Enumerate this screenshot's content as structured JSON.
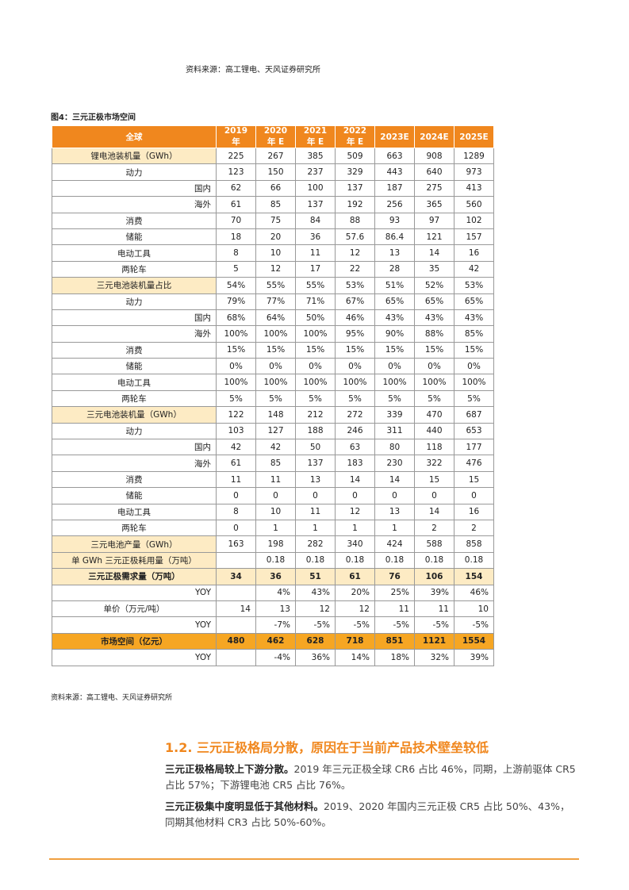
{
  "header": {
    "source": "资料来源：高工锂电、天风证券研究所"
  },
  "figure": {
    "caption": "图4：三元正极市场空间",
    "source": "资料来源：高工锂电、天风证券研究所"
  },
  "table": {
    "columns": [
      "全球",
      "2019 年",
      "2020 年 E",
      "2021 年 E",
      "2022 年 E",
      "2023E",
      "2024E",
      "2025E"
    ],
    "rows": [
      [
        "锂电池装机量（GWh）",
        "225",
        "267",
        "385",
        "509",
        "663",
        "908",
        "1289"
      ],
      [
        "动力",
        "123",
        "150",
        "237",
        "329",
        "443",
        "640",
        "973"
      ],
      [
        "国内",
        "62",
        "66",
        "100",
        "137",
        "187",
        "275",
        "413"
      ],
      [
        "海外",
        "61",
        "85",
        "137",
        "192",
        "256",
        "365",
        "560"
      ],
      [
        "消费",
        "70",
        "75",
        "84",
        "88",
        "93",
        "97",
        "102"
      ],
      [
        "储能",
        "18",
        "20",
        "36",
        "57.6",
        "86.4",
        "121",
        "157"
      ],
      [
        "电动工具",
        "8",
        "10",
        "11",
        "12",
        "13",
        "14",
        "16"
      ],
      [
        "两轮车",
        "5",
        "12",
        "17",
        "22",
        "28",
        "35",
        "42"
      ],
      [
        "三元电池装机量占比",
        "54%",
        "55%",
        "55%",
        "53%",
        "51%",
        "52%",
        "53%"
      ],
      [
        "动力",
        "79%",
        "77%",
        "71%",
        "67%",
        "65%",
        "65%",
        "65%"
      ],
      [
        "国内",
        "68%",
        "64%",
        "50%",
        "46%",
        "43%",
        "43%",
        "43%"
      ],
      [
        "海外",
        "100%",
        "100%",
        "100%",
        "95%",
        "90%",
        "88%",
        "85%"
      ],
      [
        "消费",
        "15%",
        "15%",
        "15%",
        "15%",
        "15%",
        "15%",
        "15%"
      ],
      [
        "储能",
        "0%",
        "0%",
        "0%",
        "0%",
        "0%",
        "0%",
        "0%"
      ],
      [
        "电动工具",
        "100%",
        "100%",
        "100%",
        "100%",
        "100%",
        "100%",
        "100%"
      ],
      [
        "两轮车",
        "5%",
        "5%",
        "5%",
        "5%",
        "5%",
        "5%",
        "5%"
      ],
      [
        "三元电池装机量（GWh）",
        "122",
        "148",
        "212",
        "272",
        "339",
        "470",
        "687"
      ],
      [
        "动力",
        "103",
        "127",
        "188",
        "246",
        "311",
        "440",
        "653"
      ],
      [
        "国内",
        "42",
        "42",
        "50",
        "63",
        "80",
        "118",
        "177"
      ],
      [
        "海外",
        "61",
        "85",
        "137",
        "183",
        "230",
        "322",
        "476"
      ],
      [
        "消费",
        "11",
        "11",
        "13",
        "14",
        "14",
        "15",
        "15"
      ],
      [
        "储能",
        "0",
        "0",
        "0",
        "0",
        "0",
        "0",
        "0"
      ],
      [
        "电动工具",
        "8",
        "10",
        "11",
        "12",
        "13",
        "14",
        "16"
      ],
      [
        "两轮车",
        "0",
        "1",
        "1",
        "1",
        "1",
        "2",
        "2"
      ],
      [
        "三元电池产量（GWh）",
        "163",
        "198",
        "282",
        "340",
        "424",
        "588",
        "858"
      ],
      [
        "单 GWh 三元正极耗用量（万吨）",
        null,
        "0.18",
        "0.18",
        "0.18",
        "0.18",
        "0.18",
        "0.18"
      ],
      [
        "三元正极需求量（万吨）",
        "34",
        "36",
        "51",
        "61",
        "76",
        "106",
        "154"
      ],
      [
        "YOY",
        null,
        "4%",
        "43%",
        "20%",
        "25%",
        "39%",
        "46%"
      ],
      [
        "单价（万元/吨）",
        "14",
        "13",
        "12",
        "12",
        "11",
        "11",
        "10"
      ],
      [
        "YOY",
        null,
        "-7%",
        "-5%",
        "-5%",
        "-5%",
        "-5%",
        "-5%"
      ],
      [
        "市场空间（亿元）",
        "480",
        "462",
        "628",
        "718",
        "851",
        "1121",
        "1554"
      ],
      [
        "YOY",
        null,
        "-4%",
        "36%",
        "14%",
        "18%",
        "32%",
        "39%"
      ]
    ]
  },
  "section": {
    "heading": "1.2. 三元正极格局分散，原因在于当前产品技术壁垒较低",
    "paragraphs": [
      {
        "lead": "三元正极格局较上下游分散。",
        "text": "2019 年三元正极全球 CR6 占比 46%，同期，上游前驱体 CR5 占比 57%；下游锂电池 CR5 占比 76%。"
      },
      {
        "lead": "三元正极集中度明显低于其他材料。",
        "text": "2019、2020 年国内三元正极 CR5 占比 50%、43%，同期其他材料 CR3 占比 50%-60%。"
      }
    ]
  }
}
